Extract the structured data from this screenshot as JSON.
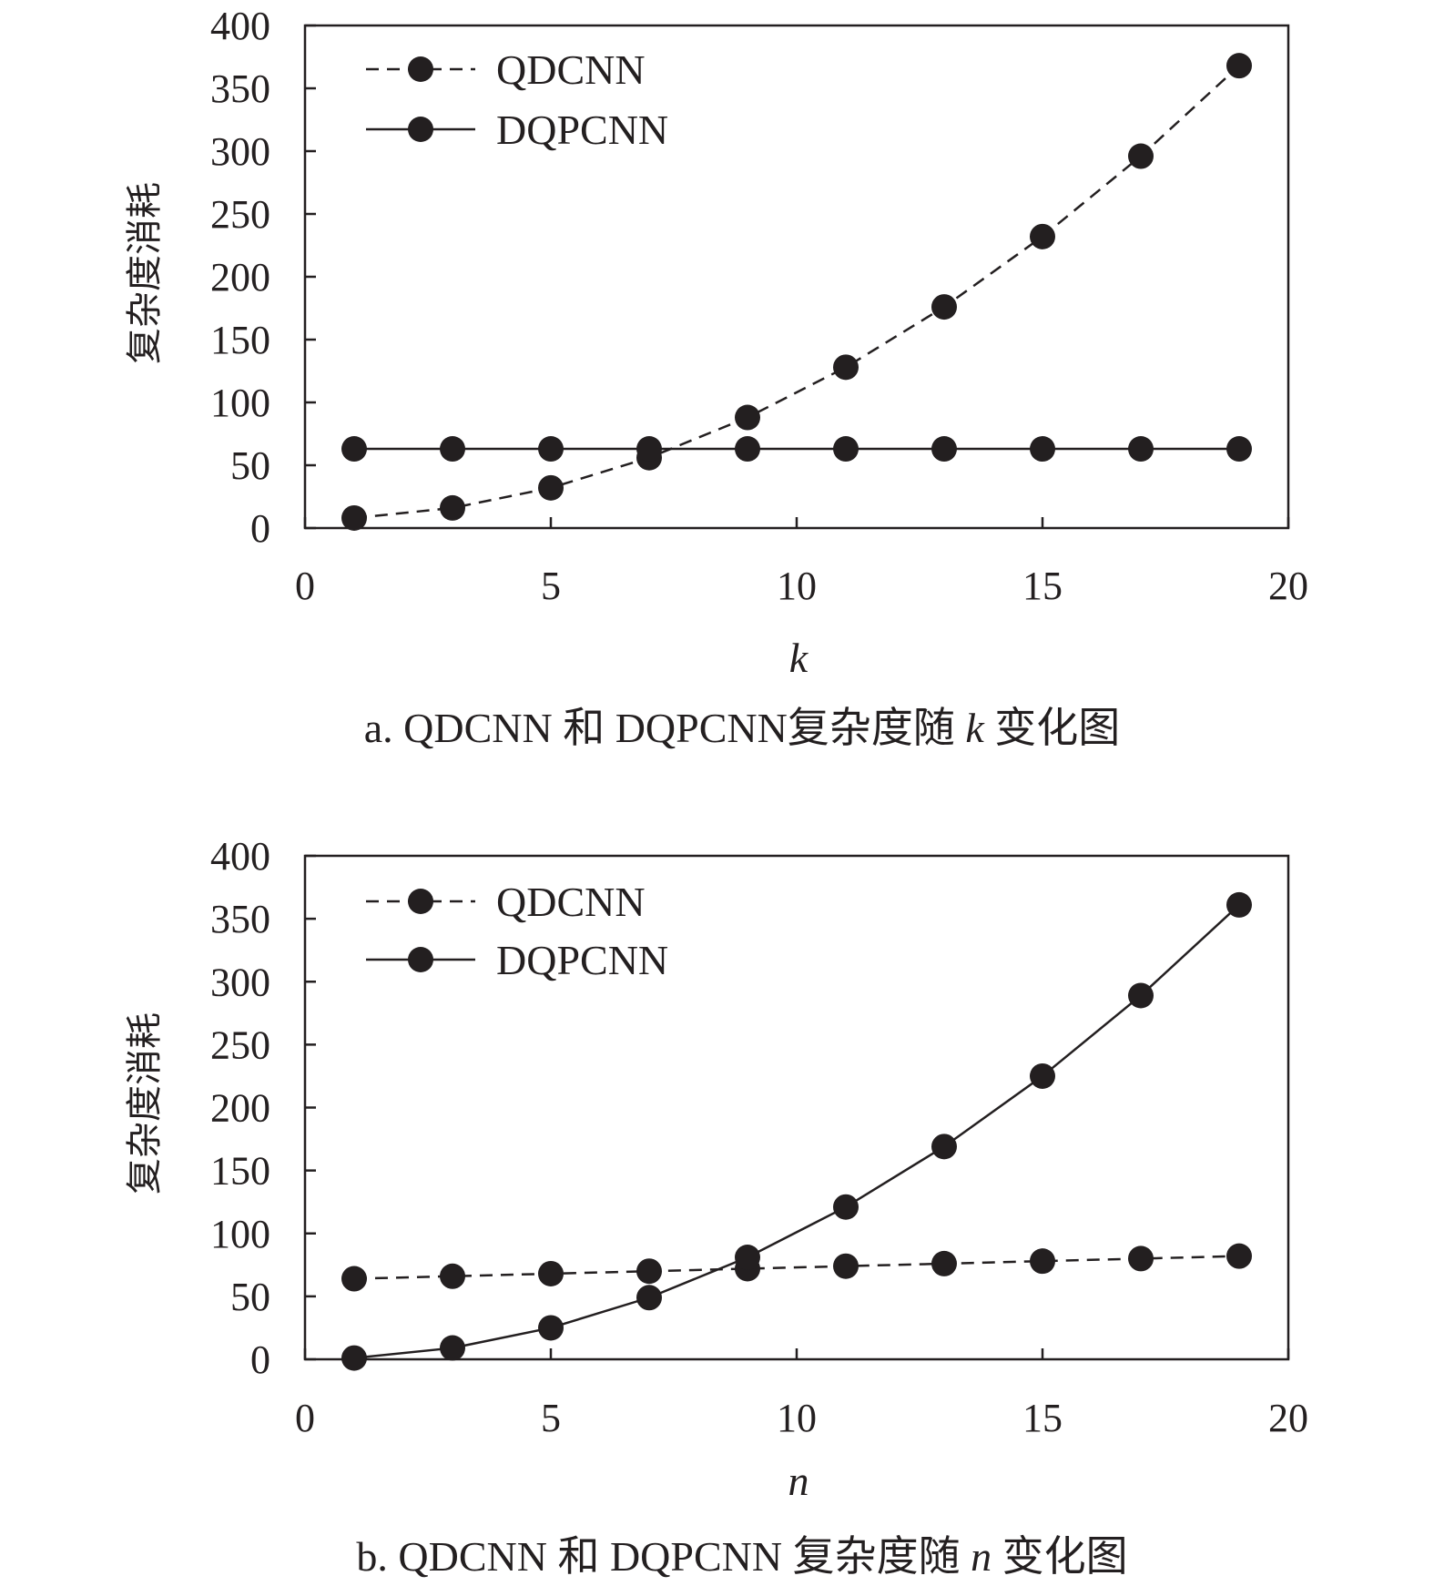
{
  "colors": {
    "ink": "#231f20",
    "background": "#ffffff"
  },
  "chart_data": [
    {
      "type": "line",
      "xlabel": "k",
      "ylabel": "复杂度消耗",
      "xlim": [
        0,
        20
      ],
      "ylim": [
        0,
        400
      ],
      "xticks": [
        0,
        5,
        10,
        15,
        20
      ],
      "yticks": [
        0,
        50,
        100,
        150,
        200,
        250,
        300,
        350,
        400
      ],
      "grid": false,
      "legend_position": "top-left",
      "x": [
        1,
        3,
        5,
        7,
        9,
        11,
        13,
        15,
        17,
        19
      ],
      "series": [
        {
          "name": "QDCNN",
          "line_style": "dashed",
          "marker": "filled-circle",
          "values": [
            8,
            16,
            32,
            56,
            88,
            128,
            176,
            232,
            296,
            368
          ]
        },
        {
          "name": "DQPCNN",
          "line_style": "solid",
          "marker": "filled-circle",
          "values": [
            63,
            63,
            63,
            63,
            63,
            63,
            63,
            63,
            63,
            63
          ]
        }
      ],
      "caption": {
        "prefix": "a. QDCNN 和 DQPCNN复杂度随 ",
        "variable": "k",
        "suffix": " 变化图"
      }
    },
    {
      "type": "line",
      "xlabel": "n",
      "ylabel": "复杂度消耗",
      "xlim": [
        0,
        20
      ],
      "ylim": [
        0,
        400
      ],
      "xticks": [
        0,
        5,
        10,
        15,
        20
      ],
      "yticks": [
        0,
        50,
        100,
        150,
        200,
        250,
        300,
        350,
        400
      ],
      "grid": false,
      "legend_position": "top-left",
      "x": [
        1,
        3,
        5,
        7,
        9,
        11,
        13,
        15,
        17,
        19
      ],
      "series": [
        {
          "name": "QDCNN",
          "line_style": "dashed",
          "marker": "filled-circle",
          "values": [
            64,
            66,
            68,
            70,
            72,
            74,
            76,
            78,
            80,
            82
          ]
        },
        {
          "name": "DQPCNN",
          "line_style": "solid",
          "marker": "filled-circle",
          "values": [
            1,
            9,
            25,
            49,
            81,
            121,
            169,
            225,
            289,
            361
          ]
        }
      ],
      "caption": {
        "prefix": "b. QDCNN 和 DQPCNN 复杂度随 ",
        "variable": "n",
        "suffix": " 变化图"
      }
    }
  ]
}
